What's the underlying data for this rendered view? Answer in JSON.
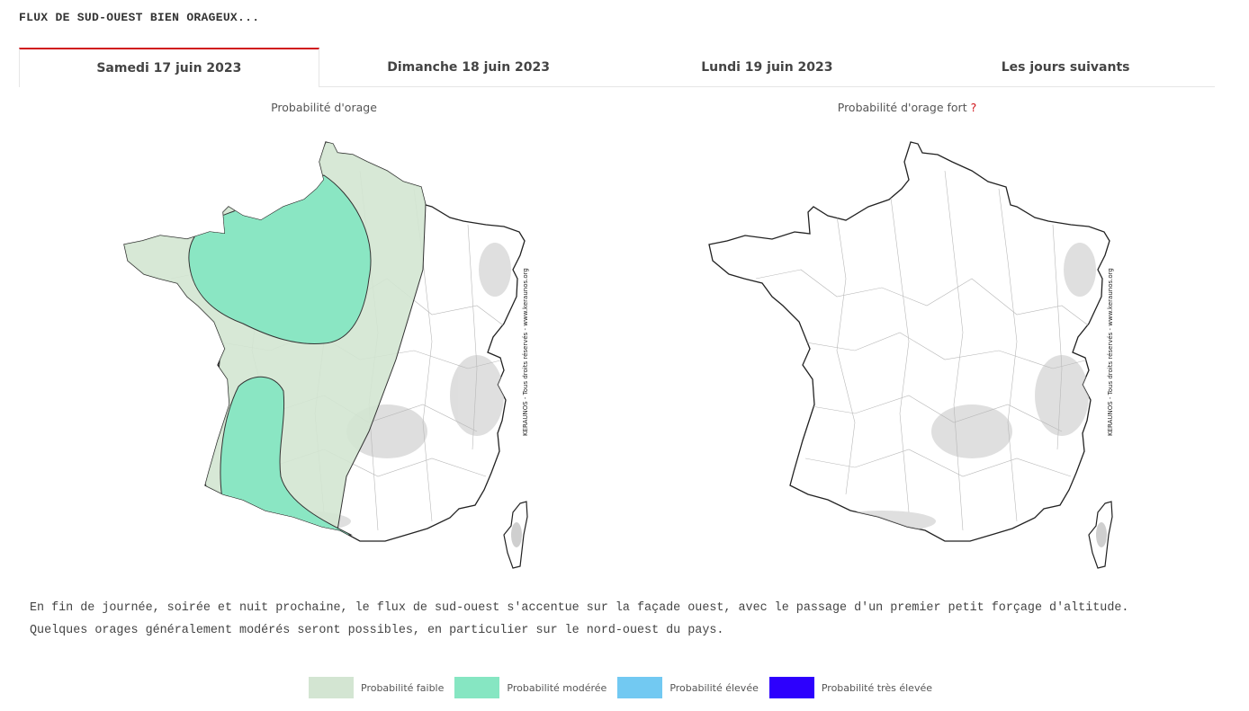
{
  "headline": "FLUX DE SUD-OUEST BIEN ORAGEUX...",
  "tabs": [
    {
      "label": "Samedi 17 juin 2023",
      "active": true
    },
    {
      "label": "Dimanche 18 juin 2023",
      "active": false
    },
    {
      "label": "Lundi 19 juin 2023",
      "active": false
    },
    {
      "label": "Les jours suivants",
      "active": false
    }
  ],
  "maps": {
    "left_title": "Probabilité d'orage",
    "right_title": "Probabilité d'orage fort",
    "right_help": "?",
    "credit": "KERAUNOS - Tous droits réservés - www.keraunos.org"
  },
  "description": {
    "line1": "En fin de journée, soirée et nuit prochaine, le flux de sud-ouest s'accentue sur la façade ouest, avec le passage d'un premier petit forçage d'altitude.",
    "line2": "Quelques orages généralement modérés seront possibles, en particulier sur le nord-ouest du pays."
  },
  "legend": [
    {
      "label": "Probabilité faible",
      "color": "#d3e5d2"
    },
    {
      "label": "Probabilité modérée",
      "color": "#86e6c2"
    },
    {
      "label": "Probabilité élevée",
      "color": "#72c9f2"
    },
    {
      "label": "Probabilité très élevée",
      "color": "#2d00fd"
    }
  ],
  "colors": {
    "accent": "#d0151b",
    "low": "#d3e5d2",
    "moderate": "#86e6c2"
  }
}
